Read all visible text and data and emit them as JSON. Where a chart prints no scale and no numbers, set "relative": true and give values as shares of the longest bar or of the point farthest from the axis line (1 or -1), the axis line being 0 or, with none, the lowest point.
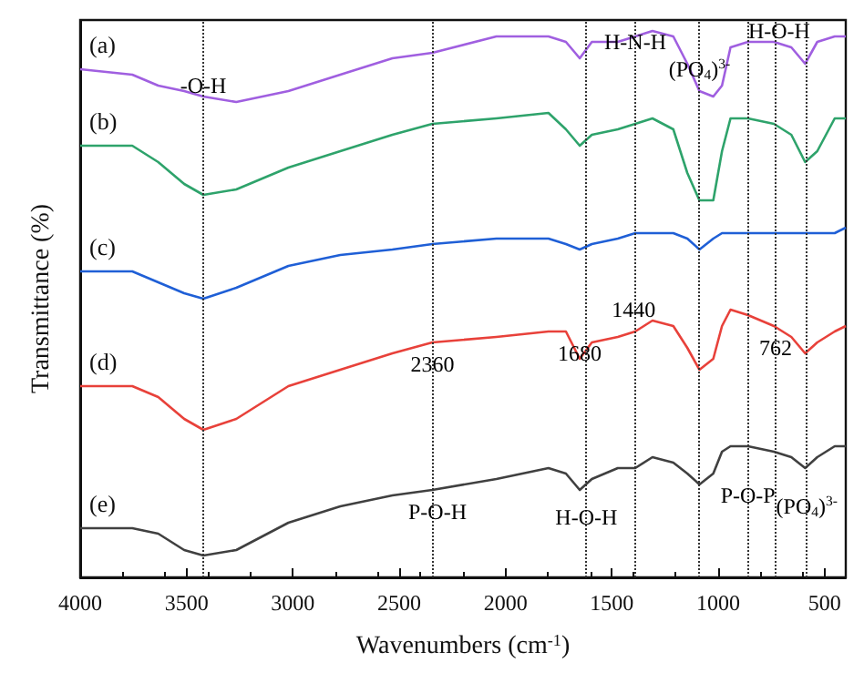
{
  "chart_data": {
    "type": "line",
    "relative": true,
    "xlabel": "Wavenumbers (cm$^{-1}$)",
    "ylabel": "Transmittance (%)",
    "x": [
      4000,
      3755,
      3633,
      3511,
      3421,
      3266,
      3021,
      2777,
      2532,
      2344,
      2043,
      1798,
      1716,
      1651,
      1594,
      1472,
      1390,
      1309,
      1211,
      1145,
      1088,
      1023,
      982,
      942,
      860,
      738,
      656,
      591,
      534,
      452,
      400
    ],
    "xlim": [
      4000,
      400
    ],
    "xticks": [
      4000,
      3500,
      3000,
      2500,
      2000,
      1500,
      1000,
      500
    ],
    "grid": false,
    "legend": false,
    "marker": "none",
    "line_style": "solid",
    "series": [
      {
        "name": "(a)",
        "color": "#a05fe0",
        "values": [
          0.93,
          0.92,
          0.9,
          0.89,
          0.88,
          0.87,
          0.89,
          0.92,
          0.95,
          0.96,
          0.99,
          0.99,
          0.98,
          0.95,
          0.98,
          0.98,
          0.99,
          1.0,
          0.99,
          0.94,
          0.89,
          0.88,
          0.9,
          0.97,
          0.98,
          0.98,
          0.97,
          0.94,
          0.98,
          0.99,
          0.99
        ]
      },
      {
        "name": "(b)",
        "color": "#2ea36b",
        "values": [
          0.79,
          0.79,
          0.76,
          0.72,
          0.7,
          0.71,
          0.75,
          0.78,
          0.81,
          0.83,
          0.84,
          0.85,
          0.82,
          0.79,
          0.81,
          0.82,
          0.83,
          0.84,
          0.82,
          0.74,
          0.69,
          0.69,
          0.78,
          0.84,
          0.84,
          0.83,
          0.81,
          0.76,
          0.78,
          0.84,
          0.84
        ]
      },
      {
        "name": "(c)",
        "color": "#1f5fd6",
        "values": [
          0.56,
          0.56,
          0.54,
          0.52,
          0.51,
          0.53,
          0.57,
          0.59,
          0.6,
          0.61,
          0.62,
          0.62,
          0.61,
          0.6,
          0.61,
          0.62,
          0.63,
          0.63,
          0.63,
          0.62,
          0.6,
          0.62,
          0.63,
          0.63,
          0.63,
          0.63,
          0.63,
          0.63,
          0.63,
          0.63,
          0.64
        ]
      },
      {
        "name": "(d)",
        "color": "#e8413a",
        "values": [
          0.35,
          0.35,
          0.33,
          0.29,
          0.27,
          0.29,
          0.35,
          0.38,
          0.41,
          0.43,
          0.44,
          0.45,
          0.45,
          0.4,
          0.43,
          0.44,
          0.45,
          0.47,
          0.46,
          0.42,
          0.38,
          0.4,
          0.46,
          0.49,
          0.48,
          0.46,
          0.44,
          0.41,
          0.43,
          0.45,
          0.46
        ]
      },
      {
        "name": "(e)",
        "color": "#404040",
        "values": [
          0.09,
          0.09,
          0.08,
          0.05,
          0.04,
          0.05,
          0.1,
          0.13,
          0.15,
          0.16,
          0.18,
          0.2,
          0.19,
          0.16,
          0.18,
          0.2,
          0.2,
          0.22,
          0.21,
          0.19,
          0.17,
          0.19,
          0.23,
          0.24,
          0.24,
          0.23,
          0.22,
          0.2,
          0.22,
          0.24,
          0.24
        ]
      }
    ],
    "ref_lines": [
      {
        "axis": "x",
        "value": 3421,
        "line_style": "dotted"
      },
      {
        "axis": "x",
        "value": 2344,
        "line_style": "dotted"
      },
      {
        "axis": "x",
        "value": 1627,
        "line_style": "dotted"
      },
      {
        "axis": "x",
        "value": 1390,
        "line_style": "dotted"
      },
      {
        "axis": "x",
        "value": 1088,
        "line_style": "dotted"
      },
      {
        "axis": "x",
        "value": 860,
        "line_style": "dotted"
      },
      {
        "axis": "x",
        "value": 730,
        "line_style": "dotted"
      },
      {
        "axis": "x",
        "value": 583,
        "line_style": "dotted"
      }
    ],
    "annotations": [
      {
        "text": "-O-H",
        "x": 3421,
        "y": 0.9
      },
      {
        "text": "H-N-H",
        "x": 1390,
        "y": 0.98
      },
      {
        "text": "(PO$_{4}$)$^{3-}$",
        "x": 1088,
        "y": 0.93
      },
      {
        "text": "H-O-H",
        "x": 713,
        "y": 1.0
      },
      {
        "text": "2360",
        "x": 2344,
        "y": 0.39
      },
      {
        "text": "1680",
        "x": 1651,
        "y": 0.41
      },
      {
        "text": "1440",
        "x": 1398,
        "y": 0.49
      },
      {
        "text": "762",
        "x": 730,
        "y": 0.42
      },
      {
        "text": "P-O-H",
        "x": 2320,
        "y": 0.12
      },
      {
        "text": "H-O-H",
        "x": 1620,
        "y": 0.11
      },
      {
        "text": "P-O-P",
        "x": 860,
        "y": 0.15
      },
      {
        "text": "(PO$_{4}$)$^{3-}$",
        "x": 583,
        "y": 0.13
      }
    ]
  }
}
